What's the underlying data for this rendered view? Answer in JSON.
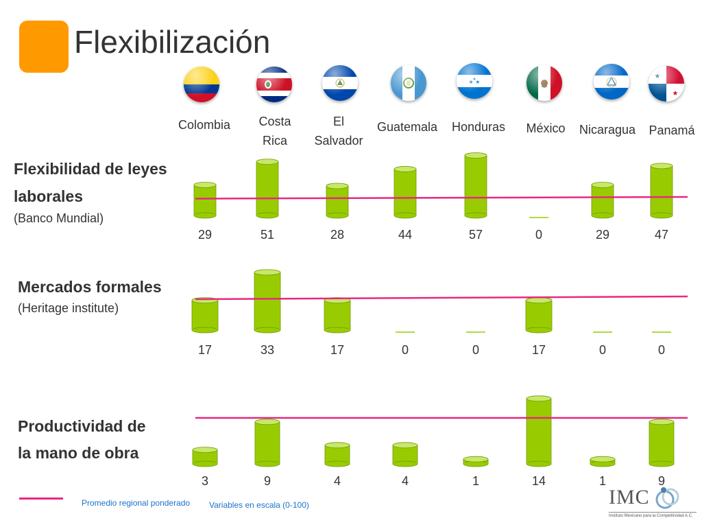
{
  "title": "Flexibilización",
  "countries": [
    {
      "name": "Colombia",
      "flag": "colombia-flag"
    },
    {
      "name": "Costa\nRica",
      "flag": "costa-rica-flag"
    },
    {
      "name": "El\nSalvador",
      "flag": "el-salvador-flag"
    },
    {
      "name": "Guatemala",
      "flag": "guatemala-flag"
    },
    {
      "name": "Honduras",
      "flag": "honduras-flag"
    },
    {
      "name": "México",
      "flag": "mexico-flag"
    },
    {
      "name": "Nicaragua",
      "flag": "nicaragua-flag"
    },
    {
      "name": "Panamá",
      "flag": "panama-flag"
    }
  ],
  "rows": [
    {
      "title_lines": [
        "Flexibilidad de leyes",
        "laborales"
      ],
      "subtitle": "(Banco Mundial)"
    },
    {
      "title_lines": [
        "Mercados formales"
      ],
      "subtitle": "(Heritage institute)"
    },
    {
      "title_lines": [
        "Productividad de",
        "la mano de obra"
      ],
      "subtitle": ""
    }
  ],
  "chart_data": [
    {
      "type": "bar",
      "title": "Flexibilidad de leyes laborales",
      "subtitle": "(Banco Mundial)",
      "categories": [
        "Colombia",
        "Costa Rica",
        "El Salvador",
        "Guatemala",
        "Honduras",
        "México",
        "Nicaragua",
        "Panamá"
      ],
      "values": [
        29,
        51,
        28,
        44,
        57,
        0,
        29,
        47
      ],
      "labels": [
        "29",
        "51",
        "28",
        "44",
        "57",
        "0",
        "29",
        "47"
      ],
      "reference_line": {
        "name": "Promedio regional ponderado",
        "value": 21
      }
    },
    {
      "type": "bar",
      "title": "Mercados formales",
      "subtitle": "(Heritage institute)",
      "categories": [
        "Colombia",
        "Costa Rica",
        "El Salvador",
        "Guatemala",
        "Honduras",
        "México",
        "Nicaragua",
        "Panamá"
      ],
      "values": [
        17,
        33,
        17,
        0,
        0,
        17,
        0,
        0
      ],
      "labels": [
        "17",
        "33",
        "17",
        "0",
        "0",
        "17",
        "0",
        "0"
      ],
      "reference_line": {
        "name": "Promedio regional ponderado",
        "value": 14
      }
    },
    {
      "type": "bar",
      "title": "Productividad de la mano de obra",
      "categories": [
        "Colombia",
        "Costa Rica",
        "El Salvador",
        "Guatemala",
        "Honduras",
        "México",
        "Nicaragua",
        "Panamá"
      ],
      "values": [
        3,
        9,
        4,
        4,
        1,
        14,
        1,
        9
      ],
      "labels": [
        "3",
        "9",
        "4",
        "4",
        "1",
        "14",
        "1",
        "9"
      ],
      "reference_line": {
        "name": "Promedio regional ponderado",
        "value": 9
      }
    }
  ],
  "legend": {
    "line_label": "Promedio regional ponderado",
    "scale_note": "Variables en escala (0-100)"
  },
  "logo": {
    "text": "IMC",
    "tagline": "Instituto Mexicano para la Competitividad A.C."
  },
  "colors": {
    "accent_square": "#ff9900",
    "bar_fill": "#99cc00",
    "bar_top": "#c8e86a",
    "bar_stroke": "#6e9a00",
    "reference_line": "#e8287f",
    "legend_text": "#1a73c8"
  }
}
